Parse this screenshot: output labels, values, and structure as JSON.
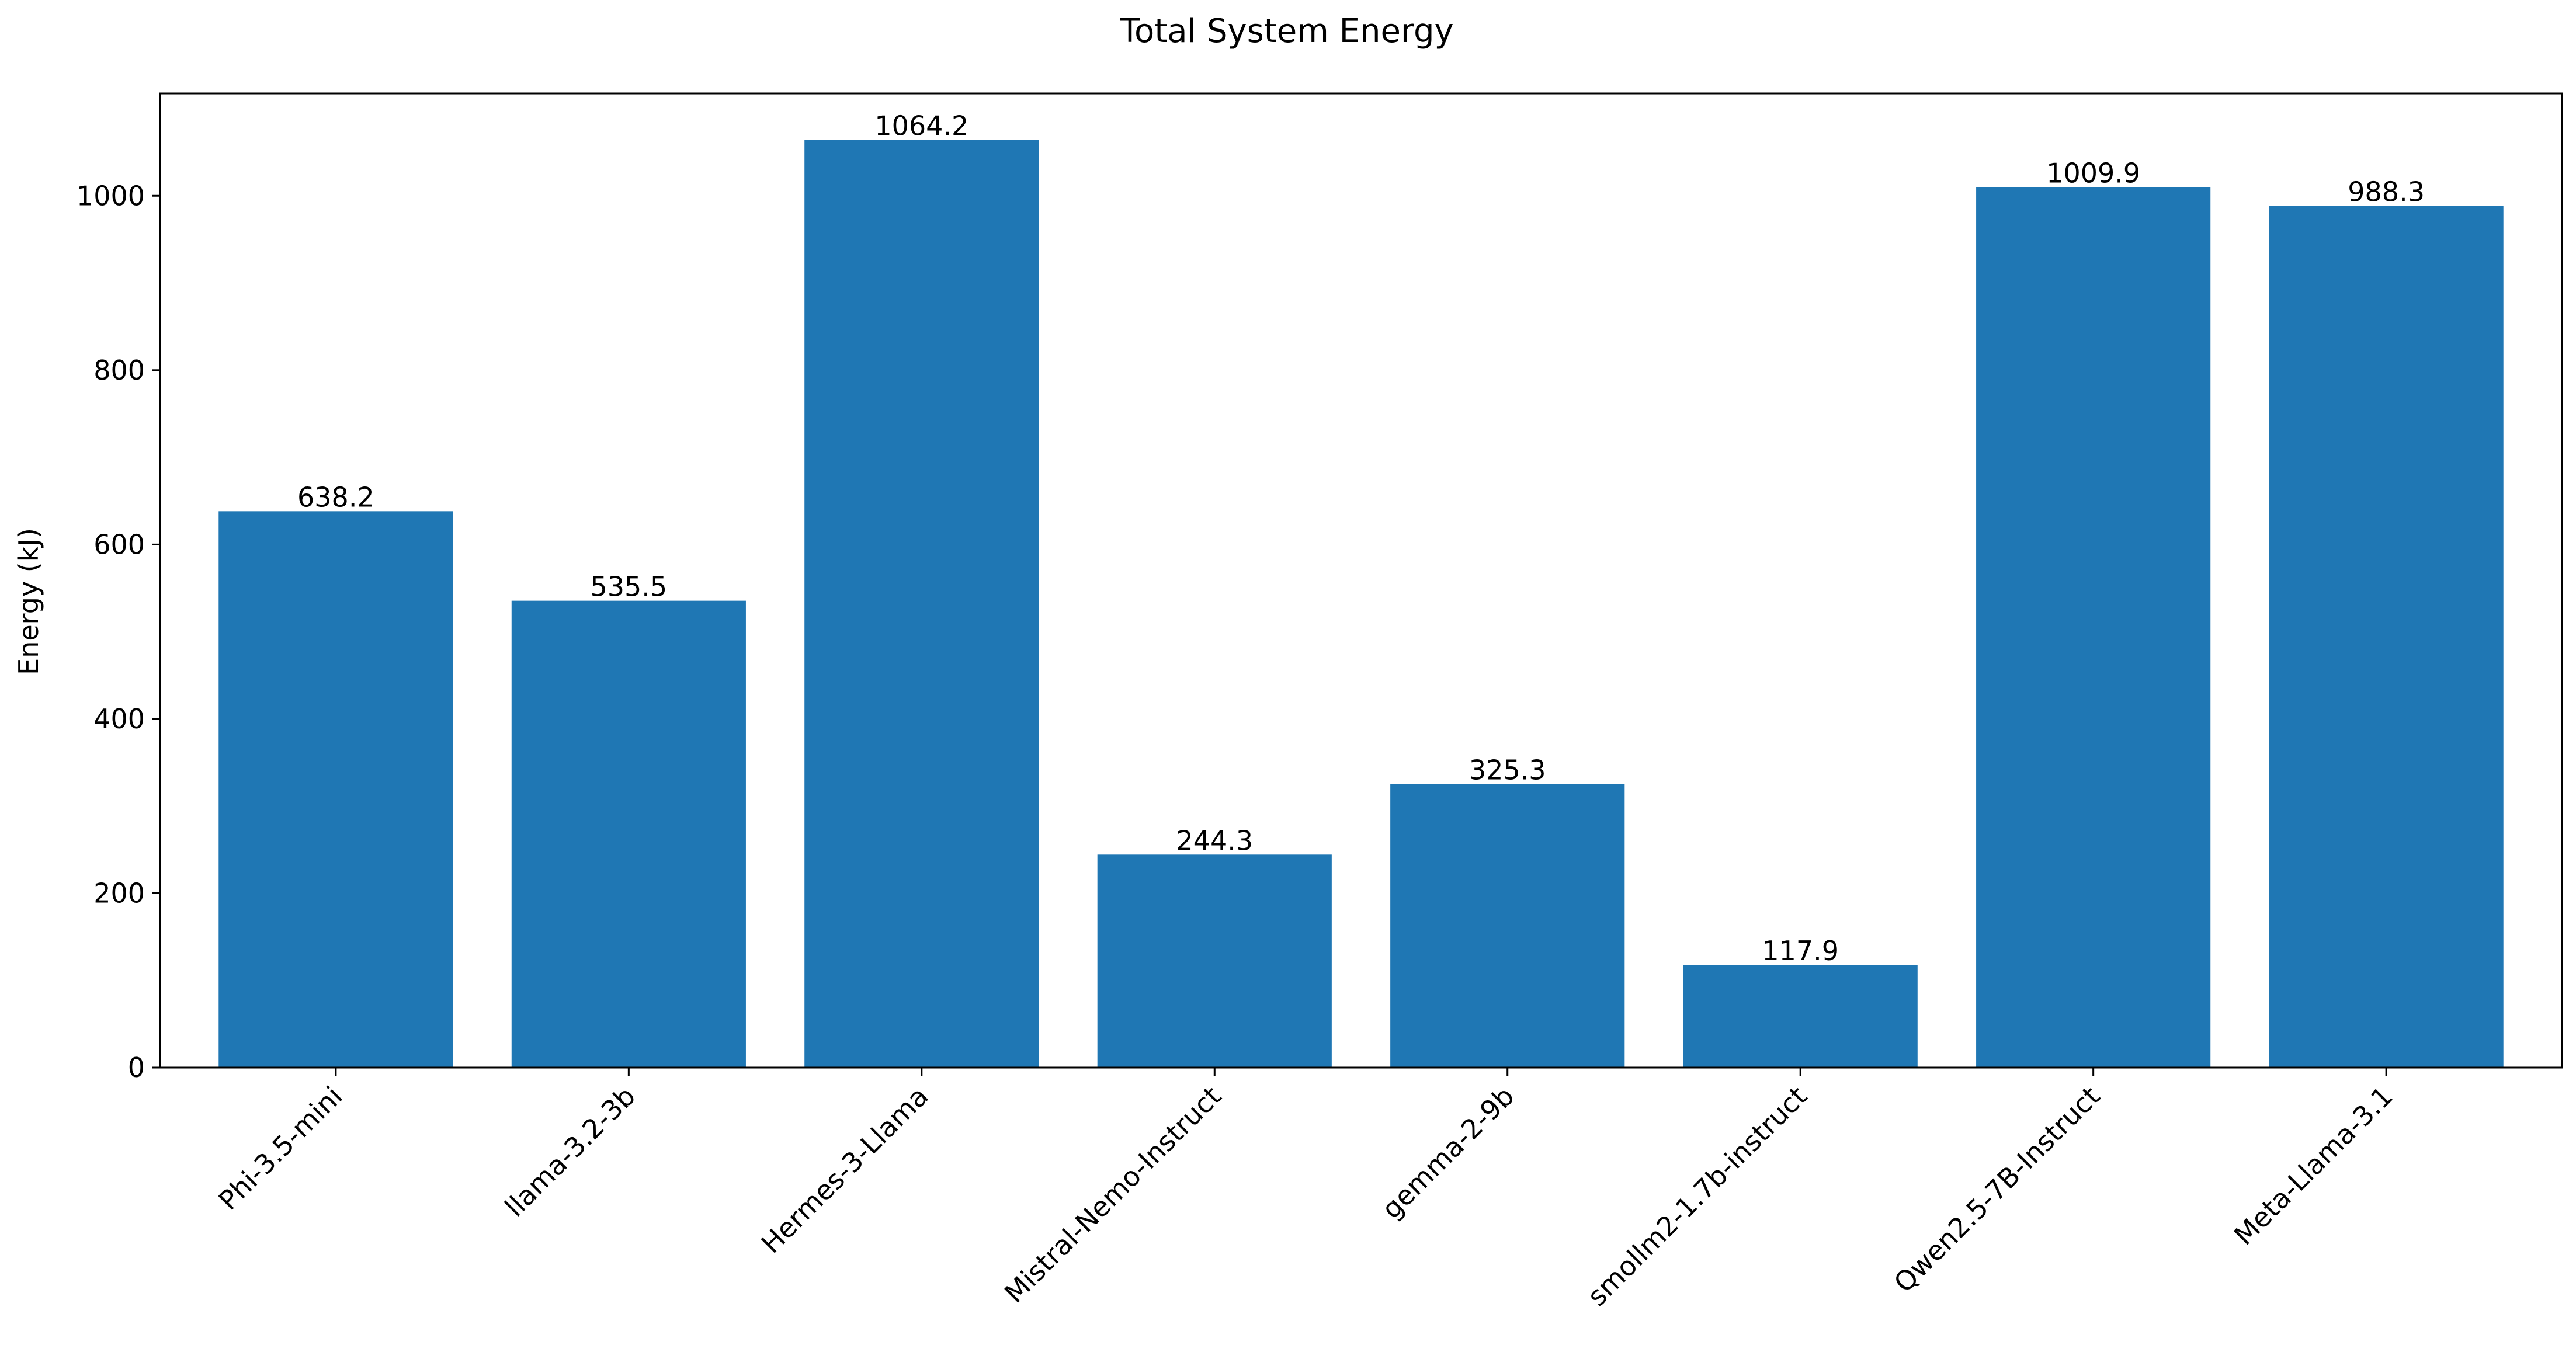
{
  "chart_data": {
    "type": "bar",
    "title": "Total System Energy",
    "xlabel": "",
    "ylabel": "Energy (kJ)",
    "categories": [
      "Phi-3.5-mini",
      "llama-3.2-3b",
      "Hermes-3-Llama",
      "Mistral-Nemo-Instruct",
      "gemma-2-9b",
      "smollm2-1.7b-instruct",
      "Qwen2.5-7B-Instruct",
      "Meta-Llama-3.1"
    ],
    "values": [
      638.2,
      535.5,
      1064.2,
      244.3,
      325.3,
      117.9,
      1009.9,
      988.3
    ],
    "value_labels": [
      "638.2",
      "535.5",
      "1064.2",
      "244.3",
      "325.3",
      "117.9",
      "1009.9",
      "988.3"
    ],
    "ylim": [
      0,
      1117.41
    ],
    "yticks": [
      0,
      200,
      400,
      600,
      800,
      1000
    ],
    "ytick_labels": [
      "0",
      "200",
      "400",
      "600",
      "800",
      "1000"
    ],
    "bar_color": "#1f77b4",
    "grid": false,
    "legend": "none"
  }
}
